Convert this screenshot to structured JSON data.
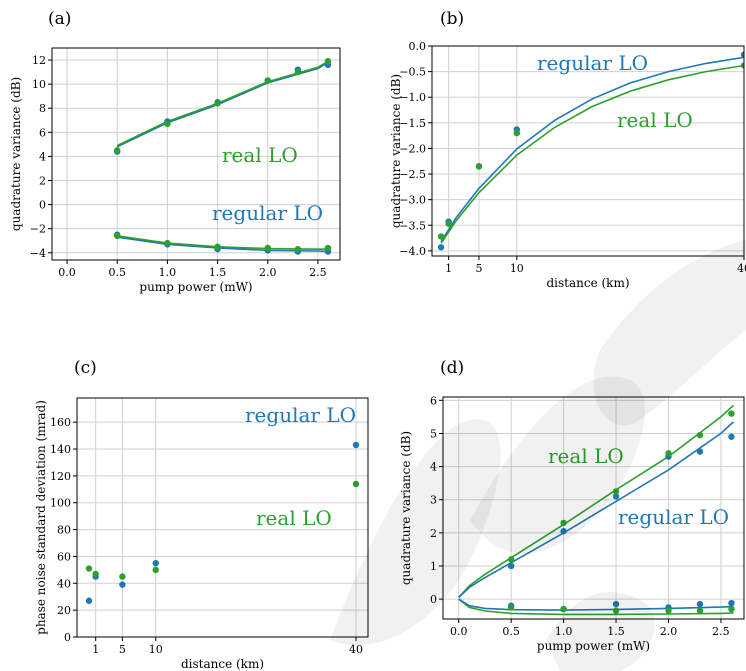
{
  "colors": {
    "regular": "#1f77b4",
    "real": "#2ca02c",
    "watermark": "#000000"
  },
  "chart_data": [
    {
      "panel_label": "(a)",
      "type": "scatter",
      "xlabel": "pump power (mW)",
      "ylabel": "quadrature variance (dB)",
      "xlim": [
        -0.15,
        2.72
      ],
      "ylim": [
        -4.6,
        13.0
      ],
      "xticks": [
        0.0,
        0.5,
        1.0,
        1.5,
        2.0,
        2.5
      ],
      "xtick_labels": [
        "0.0",
        "0.5",
        "1.0",
        "1.5",
        "2.0",
        "2.5"
      ],
      "yticks": [
        -4,
        -2,
        0,
        2,
        4,
        6,
        8,
        10,
        12
      ],
      "ytick_labels": [
        "−4",
        "−2",
        "0",
        "2",
        "4",
        "6",
        "8",
        "10",
        "12"
      ],
      "grid": true,
      "annotations": [
        {
          "text": "real LO",
          "series": "real"
        },
        {
          "text": "regular LO",
          "series": "regular"
        }
      ],
      "series": [
        {
          "key": "regular",
          "x": [
            0.5,
            1.0,
            1.5,
            2.0,
            2.3,
            2.6,
            0.5,
            1.0,
            1.5,
            2.0,
            2.3,
            2.6
          ],
          "y": [
            4.4,
            6.9,
            8.5,
            10.3,
            11.2,
            11.6,
            -2.5,
            -3.3,
            -3.7,
            -3.8,
            -3.9,
            -3.9
          ]
        },
        {
          "key": "real",
          "x": [
            0.5,
            1.0,
            1.5,
            2.0,
            2.3,
            2.6,
            0.5,
            1.0,
            1.5,
            2.0,
            2.3,
            2.6
          ],
          "y": [
            4.5,
            6.7,
            8.4,
            10.3,
            11.0,
            11.9,
            -2.6,
            -3.2,
            -3.5,
            -3.6,
            -3.7,
            -3.6
          ]
        }
      ],
      "fits": [
        {
          "key": "regular",
          "x": [
            0.5,
            1.0,
            1.5,
            2.0,
            2.5,
            2.62
          ],
          "y": [
            4.8,
            6.8,
            8.3,
            10.1,
            11.3,
            11.9
          ]
        },
        {
          "key": "real",
          "x": [
            0.5,
            1.0,
            1.5,
            2.0,
            2.5,
            2.62
          ],
          "y": [
            4.9,
            6.9,
            8.4,
            10.2,
            11.4,
            12.0
          ]
        },
        {
          "key": "regular",
          "x": [
            0.5,
            1.0,
            1.5,
            2.0,
            2.5,
            2.62
          ],
          "y": [
            -2.7,
            -3.3,
            -3.6,
            -3.8,
            -3.85,
            -3.9
          ]
        },
        {
          "key": "real",
          "x": [
            0.5,
            1.0,
            1.5,
            2.0,
            2.5,
            2.62
          ],
          "y": [
            -2.6,
            -3.2,
            -3.5,
            -3.65,
            -3.7,
            -3.7
          ]
        }
      ]
    },
    {
      "panel_label": "(b)",
      "type": "scatter",
      "xlabel": "distance (km)",
      "ylabel": "quadrature variance (dB)",
      "xlim": [
        -1.2,
        40.0
      ],
      "ylim": [
        -4.1,
        0.0
      ],
      "xticks": [
        1,
        5,
        10,
        40
      ],
      "xtick_labels": [
        "1",
        "5",
        "10",
        "40"
      ],
      "yticks": [
        0.0,
        -0.5,
        -1.0,
        -1.5,
        -2.0,
        -2.5,
        -3.0,
        -3.5,
        -4.0
      ],
      "ytick_labels": [
        "0.0",
        "−0.5",
        "−1.0",
        "−1.5",
        "−2.0",
        "−2.5",
        "−3.0",
        "−3.5",
        "−4.0"
      ],
      "grid": true,
      "annotations": [
        {
          "text": "regular LO",
          "series": "regular"
        },
        {
          "text": "real LO",
          "series": "real"
        }
      ],
      "series": [
        {
          "key": "regular",
          "x": [
            0,
            1,
            5,
            10,
            40
          ],
          "y": [
            -3.93,
            -3.43,
            -2.35,
            -1.63,
            -0.17
          ]
        },
        {
          "key": "real",
          "x": [
            0,
            1,
            5,
            10,
            40
          ],
          "y": [
            -3.72,
            -3.47,
            -2.35,
            -1.7,
            -0.38
          ]
        }
      ],
      "fits": [
        {
          "key": "regular",
          "x": [
            0,
            2,
            5,
            10,
            15,
            20,
            25,
            30,
            35,
            40
          ],
          "y": [
            -3.82,
            -3.35,
            -2.78,
            -2.01,
            -1.45,
            -1.03,
            -0.72,
            -0.5,
            -0.34,
            -0.22
          ]
        },
        {
          "key": "real",
          "x": [
            0,
            2,
            5,
            10,
            15,
            20,
            25,
            30,
            35,
            40
          ],
          "y": [
            -3.85,
            -3.41,
            -2.86,
            -2.13,
            -1.59,
            -1.18,
            -0.88,
            -0.66,
            -0.5,
            -0.38
          ]
        }
      ]
    },
    {
      "panel_label": "(c)",
      "type": "scatter",
      "xlabel": "distance (km)",
      "ylabel": "phase noise standard deviation (mrad)",
      "xlim": [
        -1.8,
        41.8
      ],
      "ylim": [
        0,
        178
      ],
      "xticks": [
        1,
        5,
        10,
        40
      ],
      "xtick_labels": [
        "1",
        "5",
        "10",
        "40"
      ],
      "yticks": [
        0,
        20,
        40,
        60,
        80,
        100,
        120,
        140,
        160
      ],
      "ytick_labels": [
        "0",
        "20",
        "40",
        "60",
        "80",
        "100",
        "120",
        "140",
        "160"
      ],
      "grid": true,
      "annotations": [
        {
          "text": "regular LO",
          "series": "regular"
        },
        {
          "text": "real LO",
          "series": "real"
        }
      ],
      "series": [
        {
          "key": "regular",
          "x": [
            0,
            1,
            5,
            10,
            40
          ],
          "y": [
            27,
            45,
            39,
            55,
            143
          ]
        },
        {
          "key": "real",
          "x": [
            0,
            1,
            5,
            10,
            40
          ],
          "y": [
            51,
            47,
            45,
            50,
            114
          ]
        }
      ],
      "fits": []
    },
    {
      "panel_label": "(d)",
      "type": "scatter",
      "xlabel": "pump power (mW)",
      "ylabel": "quadrature variance (dB)",
      "xlim": [
        -0.15,
        2.72
      ],
      "ylim": [
        -0.6,
        6.1
      ],
      "xticks": [
        0.0,
        0.5,
        1.0,
        1.5,
        2.0,
        2.5
      ],
      "xtick_labels": [
        "0.0",
        "0.5",
        "1.0",
        "1.5",
        "2.0",
        "2.5"
      ],
      "yticks": [
        0,
        1,
        2,
        3,
        4,
        5,
        6
      ],
      "ytick_labels": [
        "0",
        "1",
        "2",
        "3",
        "4",
        "5",
        "6"
      ],
      "grid": true,
      "annotations": [
        {
          "text": "real LO",
          "series": "real"
        },
        {
          "text": "regular LO",
          "series": "regular"
        }
      ],
      "series": [
        {
          "key": "regular",
          "x": [
            0.5,
            1.0,
            1.5,
            2.0,
            2.3,
            2.6,
            0.5,
            1.0,
            1.5,
            2.0,
            2.3,
            2.6
          ],
          "y": [
            1.0,
            2.05,
            3.1,
            4.3,
            4.45,
            4.9,
            -0.2,
            -0.3,
            -0.15,
            -0.25,
            -0.15,
            -0.12
          ]
        },
        {
          "key": "real",
          "x": [
            0.5,
            1.0,
            1.5,
            2.0,
            2.3,
            2.6,
            0.5,
            1.0,
            1.5,
            2.0,
            2.3,
            2.6
          ],
          "y": [
            1.2,
            2.3,
            3.25,
            4.4,
            4.95,
            5.6,
            -0.25,
            -0.3,
            -0.35,
            -0.35,
            -0.35,
            -0.3
          ]
        }
      ],
      "fits": [
        {
          "key": "real",
          "x": [
            0.0,
            0.1,
            0.25,
            0.5,
            1.0,
            1.5,
            2.0,
            2.5,
            2.62
          ],
          "y": [
            0.05,
            0.4,
            0.75,
            1.25,
            2.25,
            3.3,
            4.3,
            5.5,
            5.85
          ]
        },
        {
          "key": "regular",
          "x": [
            0.0,
            0.1,
            0.25,
            0.5,
            1.0,
            1.5,
            2.0,
            2.5,
            2.62
          ],
          "y": [
            0.05,
            0.35,
            0.65,
            1.1,
            2.0,
            2.95,
            3.9,
            5.0,
            5.35
          ]
        },
        {
          "key": "real",
          "x": [
            0.0,
            0.1,
            0.25,
            0.5,
            1.0,
            1.5,
            2.0,
            2.5,
            2.62
          ],
          "y": [
            0.0,
            -0.25,
            -0.36,
            -0.43,
            -0.46,
            -0.46,
            -0.45,
            -0.43,
            -0.42
          ]
        },
        {
          "key": "regular",
          "x": [
            0.0,
            0.1,
            0.25,
            0.5,
            1.0,
            1.5,
            2.0,
            2.5,
            2.62
          ],
          "y": [
            0.0,
            -0.2,
            -0.28,
            -0.32,
            -0.33,
            -0.31,
            -0.28,
            -0.24,
            -0.22
          ]
        }
      ]
    }
  ]
}
